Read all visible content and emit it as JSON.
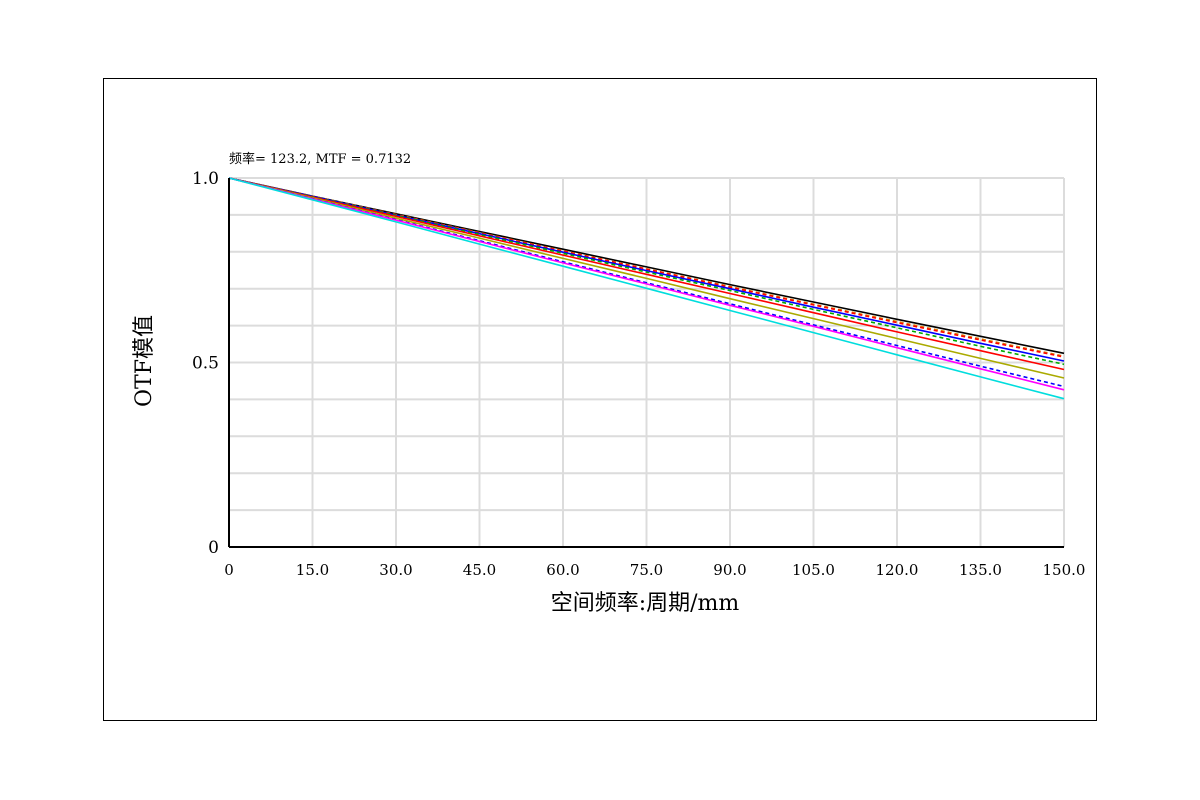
{
  "chart_data": {
    "type": "line",
    "annotation": "频率= 123.2, MTF = 0.7132",
    "xlabel": "空间频率:周期/mm",
    "ylabel": "OTF模值",
    "xlim": [
      0,
      150
    ],
    "ylim": [
      0,
      1
    ],
    "xticks": [
      0,
      15,
      30,
      45,
      60,
      75,
      90,
      105,
      120,
      135,
      150
    ],
    "xtick_labels": [
      "0",
      "15.0",
      "30.0",
      "45.0",
      "60.0",
      "75.0",
      "90.0",
      "105.0",
      "120.0",
      "135.0",
      "150.0"
    ],
    "yticks": [
      0,
      0.5,
      1.0
    ],
    "ytick_labels": [
      "0",
      "0.5",
      "1.0"
    ],
    "grid": true,
    "x": [
      0,
      15,
      30,
      45,
      60,
      75,
      90,
      105,
      120,
      135,
      150
    ],
    "series": [
      {
        "color": "#000000",
        "dash": false,
        "values": [
          1.0,
          0.951,
          0.903,
          0.855,
          0.807,
          0.759,
          0.711,
          0.664,
          0.617,
          0.571,
          0.525
        ]
      },
      {
        "color": "#d98000",
        "dash": true,
        "values": [
          1.0,
          0.951,
          0.901,
          0.852,
          0.803,
          0.754,
          0.706,
          0.658,
          0.611,
          0.564,
          0.517
        ]
      },
      {
        "color": "#ff0000",
        "dash": true,
        "values": [
          1.0,
          0.95,
          0.9,
          0.851,
          0.802,
          0.753,
          0.704,
          0.656,
          0.608,
          0.561,
          0.515
        ]
      },
      {
        "color": "#0000ff",
        "dash": false,
        "values": [
          1.0,
          0.95,
          0.899,
          0.849,
          0.799,
          0.749,
          0.7,
          0.65,
          0.601,
          0.552,
          0.504
        ]
      },
      {
        "color": "#00aa00",
        "dash": true,
        "values": [
          1.0,
          0.949,
          0.898,
          0.847,
          0.796,
          0.745,
          0.695,
          0.644,
          0.594,
          0.544,
          0.495
        ]
      },
      {
        "color": "#ff0000",
        "dash": false,
        "values": [
          1.0,
          0.948,
          0.896,
          0.843,
          0.791,
          0.739,
          0.687,
          0.635,
          0.583,
          0.532,
          0.481
        ]
      },
      {
        "color": "#aaaa00",
        "dash": false,
        "values": [
          1.0,
          0.946,
          0.891,
          0.837,
          0.782,
          0.728,
          0.673,
          0.619,
          0.565,
          0.511,
          0.458
        ]
      },
      {
        "color": "#0000ff",
        "dash": true,
        "values": [
          1.0,
          0.944,
          0.887,
          0.83,
          0.773,
          0.716,
          0.659,
          0.602,
          0.546,
          0.49,
          0.435
        ]
      },
      {
        "color": "#ff00ff",
        "dash": false,
        "values": [
          1.0,
          0.943,
          0.886,
          0.828,
          0.77,
          0.713,
          0.655,
          0.598,
          0.54,
          0.483,
          0.426
        ]
      },
      {
        "color": "#00dddd",
        "dash": false,
        "values": [
          1.0,
          0.941,
          0.881,
          0.821,
          0.761,
          0.701,
          0.641,
          0.581,
          0.521,
          0.461,
          0.402
        ]
      }
    ]
  }
}
